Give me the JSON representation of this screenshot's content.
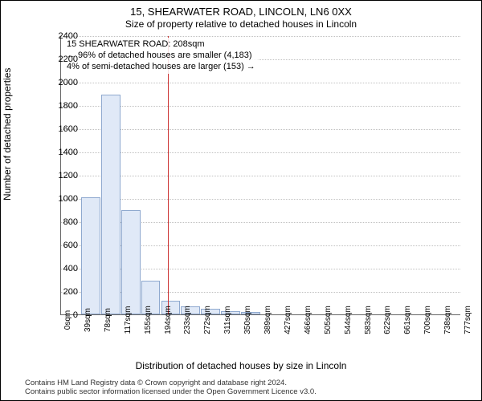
{
  "titles": {
    "line1": "15, SHEARWATER ROAD, LINCOLN, LN6 0XX",
    "line2": "Size of property relative to detached houses in Lincoln"
  },
  "axes": {
    "ylabel": "Number of detached properties",
    "xlabel": "Distribution of detached houses by size in Lincoln"
  },
  "annotation": {
    "l1": "15 SHEARWATER ROAD: 208sqm",
    "l2": "← 96% of detached houses are smaller (4,183)",
    "l3": "4% of semi-detached houses are larger (153) →"
  },
  "footnote": {
    "l1": "Contains HM Land Registry data © Crown copyright and database right 2024.",
    "l2": "Contains public sector information licensed under the Open Government Licence v3.0."
  },
  "chart": {
    "type": "histogram",
    "ymin": 0,
    "ymax": 2400,
    "yticks": [
      0,
      200,
      400,
      600,
      800,
      1000,
      1200,
      1400,
      1600,
      1800,
      2000,
      2200,
      2400
    ],
    "xticks": [
      "0sqm",
      "39sqm",
      "78sqm",
      "117sqm",
      "155sqm",
      "194sqm",
      "233sqm",
      "272sqm",
      "311sqm",
      "350sqm",
      "389sqm",
      "427sqm",
      "466sqm",
      "505sqm",
      "544sqm",
      "583sqm",
      "622sqm",
      "661sqm",
      "700sqm",
      "738sqm",
      "777sqm"
    ],
    "bars": [
      0,
      1010,
      1890,
      900,
      290,
      120,
      70,
      50,
      30,
      20,
      0,
      0,
      0,
      0,
      0,
      0,
      0,
      0,
      0,
      0
    ],
    "bar_fill": "#e0e9f7",
    "bar_stroke": "#8fa9cf",
    "grid_color": "#c0c0c0",
    "refline_x_sqm": 208,
    "refline_color": "#cc3333",
    "x_domain_max": 777
  }
}
